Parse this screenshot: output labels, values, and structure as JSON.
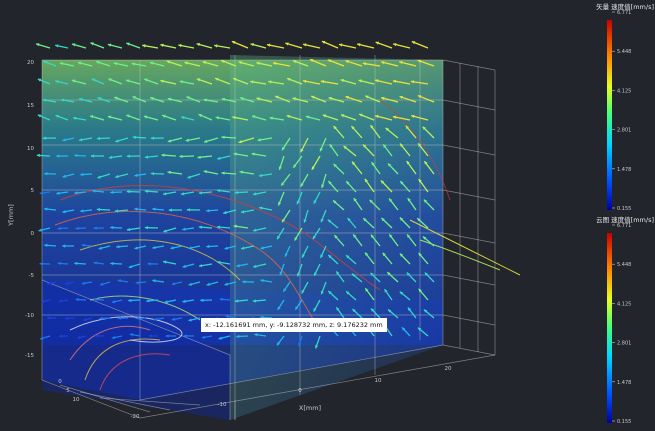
{
  "scene": {
    "x_axis": {
      "label": "X[mm]",
      "ticks": [
        "-20",
        "-10",
        "0",
        "10",
        "20"
      ]
    },
    "y_axis": {
      "label": "Y[mm]",
      "ticks": [
        "20",
        "15",
        "10",
        "5",
        "0",
        "-5",
        "-10",
        "-15"
      ]
    },
    "z_axis": {
      "ticks": [
        "0",
        "5",
        "10"
      ]
    },
    "tooltip": "x: -12.161691 mm, y: -9.128732 mm, z: 9.176232 mm",
    "colors": {
      "background": "#22252b",
      "grid": "#c8c8c8",
      "vector_fast": "#e8e23c",
      "vector_slow": "#1e5bd8",
      "streamline": "#d63c3c"
    }
  },
  "legends": {
    "vector": {
      "title": "矢量 速度值[mm/s]",
      "ticks": [
        "6.771",
        "5.448",
        "4.125",
        "2.801",
        "1.478",
        "0.155"
      ]
    },
    "cloud": {
      "title": "云图 速度值[mm/s]",
      "ticks": [
        "6.771",
        "5.448",
        "4.125",
        "2.801",
        "1.478",
        "0.155"
      ]
    }
  }
}
